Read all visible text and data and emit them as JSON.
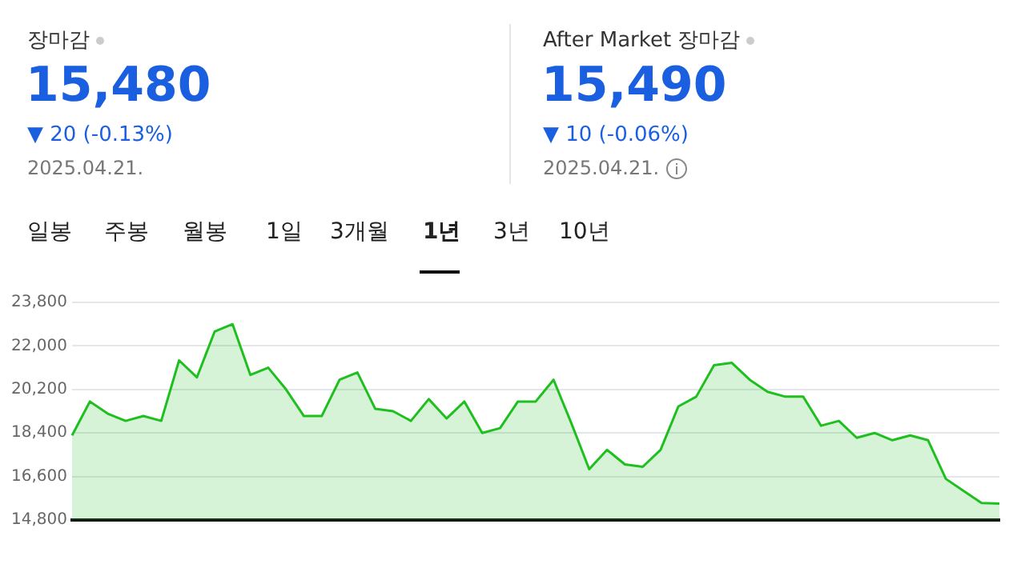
{
  "chart_data": {
    "type": "area",
    "annotations": [
      "장마감",
      "15,480",
      "▼ 20 (-0.13%)",
      "2025.04.21.",
      "After Market 장마감",
      "15,490",
      "▼ 10 (-0.06%)",
      "2025.04.21.",
      "일봉",
      "주봉",
      "월봉",
      "1일",
      "3개월",
      "1년",
      "3년",
      "10년"
    ],
    "categories": [
      null,
      null,
      null,
      null,
      null,
      null,
      null,
      null,
      null,
      null,
      null,
      null,
      null,
      null,
      null,
      null,
      null,
      null,
      null,
      null,
      null,
      null,
      null,
      null,
      null,
      null,
      null,
      null,
      null,
      null,
      null,
      null,
      null,
      null,
      null,
      null,
      null,
      null,
      null,
      null,
      null,
      null,
      null,
      null,
      null,
      null,
      null,
      null,
      null,
      null,
      null,
      null,
      null
    ],
    "values": [
      18300,
      19700,
      19200,
      18900,
      19100,
      18900,
      21400,
      20700,
      22600,
      22900,
      20800,
      21100,
      20200,
      19100,
      19100,
      20600,
      20900,
      19400,
      19300,
      18900,
      19800,
      19000,
      19700,
      18400,
      18600,
      19700,
      19700,
      20600,
      18800,
      16900,
      17700,
      17100,
      17000,
      17700,
      19500,
      19900,
      21200,
      21300,
      20600,
      20100,
      19900,
      19900,
      18700,
      18900,
      18200,
      18400,
      18100,
      18300,
      18100,
      16500,
      16000,
      15500,
      15480
    ],
    "color": "#1fbf1f",
    "ylim": [
      14800,
      23800
    ],
    "yticks": [
      {
        "value": 14800,
        "label": "14,800"
      },
      {
        "value": 16600,
        "label": "16,600"
      },
      {
        "value": 18400,
        "label": "18,400"
      },
      {
        "value": 20200,
        "label": "20,200"
      },
      {
        "value": 22000,
        "label": "22,000"
      },
      {
        "value": 23800,
        "label": "23,800"
      }
    ],
    "grid": "y",
    "tick_labels": "y",
    "marker": "none"
  }
}
